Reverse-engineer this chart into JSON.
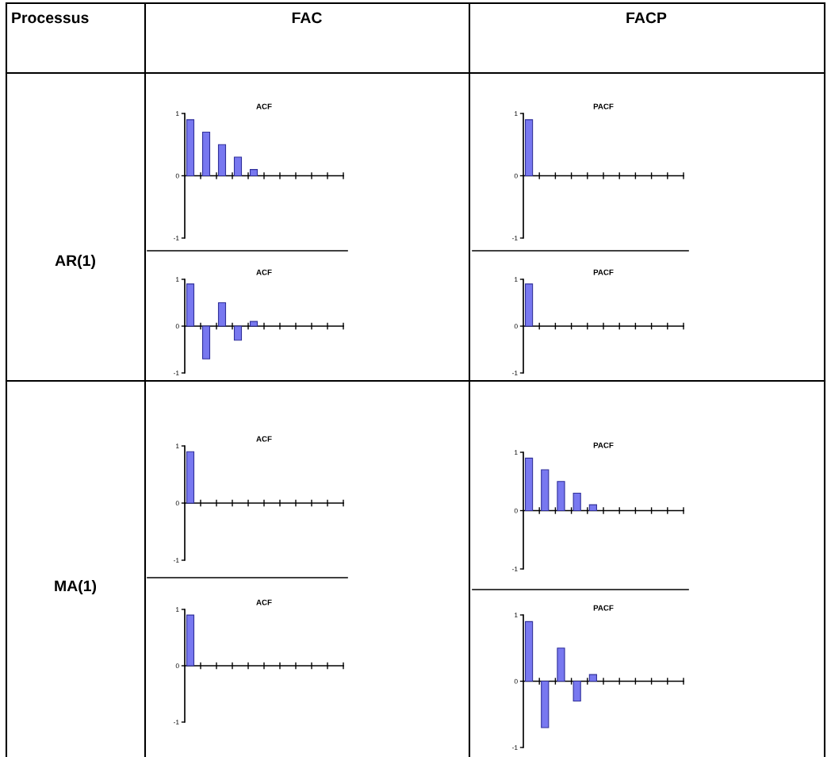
{
  "chart_data": [
    {
      "type": "other",
      "annotations": [
        "Processus",
        "FAC",
        "FACP",
        "AR(1)",
        "MA(1)"
      ]
    },
    {
      "type": "bar",
      "title": "ACF",
      "categories": [
        null,
        null,
        null,
        null,
        null,
        null,
        null,
        null,
        null,
        null
      ],
      "values": [
        0.9,
        0.7,
        0.5,
        0.3,
        0.1,
        null,
        null,
        null,
        null,
        null
      ],
      "color": "#7878f0",
      "ylim": [
        -1,
        1
      ],
      "yticks": [
        {
          "value": 1,
          "label": "1"
        },
        {
          "value": 0,
          "label": "0"
        },
        {
          "value": -1,
          "label": "-1"
        }
      ]
    },
    {
      "type": "bar",
      "title": "PACF",
      "categories": [
        null,
        null,
        null,
        null,
        null,
        null,
        null,
        null,
        null,
        null
      ],
      "values": [
        0.9,
        null,
        null,
        null,
        null,
        null,
        null,
        null,
        null,
        null
      ],
      "color": "#7878f0",
      "ylim": [
        -1,
        1
      ],
      "yticks": [
        {
          "value": 1,
          "label": "1"
        },
        {
          "value": 0,
          "label": "0"
        },
        {
          "value": -1,
          "label": "-1"
        }
      ]
    },
    {
      "type": "bar",
      "title": "ACF",
      "categories": [
        null,
        null,
        null,
        null,
        null,
        null,
        null,
        null,
        null,
        null
      ],
      "values": [
        0.9,
        -0.7,
        0.5,
        -0.3,
        0.1,
        null,
        null,
        null,
        null,
        null
      ],
      "color": "#7878f0",
      "ylim": [
        -1,
        1
      ],
      "yticks": [
        {
          "value": 1,
          "label": "1"
        },
        {
          "value": 0,
          "label": "0"
        },
        {
          "value": -1,
          "label": "-1"
        }
      ]
    },
    {
      "type": "bar",
      "title": "PACF",
      "categories": [
        null,
        null,
        null,
        null,
        null,
        null,
        null,
        null,
        null,
        null
      ],
      "values": [
        0.9,
        null,
        null,
        null,
        null,
        null,
        null,
        null,
        null,
        null
      ],
      "color": "#7878f0",
      "ylim": [
        -1,
        1
      ],
      "yticks": [
        {
          "value": 1,
          "label": "1"
        },
        {
          "value": 0,
          "label": "0"
        },
        {
          "value": -1,
          "label": "-1"
        }
      ]
    },
    {
      "type": "bar",
      "title": "ACF",
      "categories": [
        null,
        null,
        null,
        null,
        null,
        null,
        null,
        null,
        null,
        null
      ],
      "values": [
        0.9,
        null,
        null,
        null,
        null,
        null,
        null,
        null,
        null,
        null
      ],
      "color": "#7878f0",
      "ylim": [
        -1,
        1
      ],
      "yticks": [
        {
          "value": 1,
          "label": "1"
        },
        {
          "value": 0,
          "label": "0"
        },
        {
          "value": -1,
          "label": "-1"
        }
      ]
    },
    {
      "type": "bar",
      "title": "PACF",
      "categories": [
        null,
        null,
        null,
        null,
        null,
        null,
        null,
        null,
        null,
        null
      ],
      "values": [
        0.9,
        0.7,
        0.5,
        0.3,
        0.1,
        null,
        null,
        null,
        null,
        null
      ],
      "color": "#7878f0",
      "ylim": [
        -1,
        1
      ],
      "yticks": [
        {
          "value": 1,
          "label": "1"
        },
        {
          "value": 0,
          "label": "0"
        },
        {
          "value": -1,
          "label": "-1"
        }
      ]
    },
    {
      "type": "bar",
      "title": "ACF",
      "categories": [
        null,
        null,
        null,
        null,
        null,
        null,
        null,
        null,
        null,
        null
      ],
      "values": [
        0.9,
        null,
        null,
        null,
        null,
        null,
        null,
        null,
        null,
        null
      ],
      "color": "#7878f0",
      "ylim": [
        -1,
        1
      ],
      "yticks": [
        {
          "value": 1,
          "label": "1"
        },
        {
          "value": 0,
          "label": "0"
        },
        {
          "value": -1,
          "label": "-1"
        }
      ]
    },
    {
      "type": "bar",
      "title": "PACF",
      "categories": [
        null,
        null,
        null,
        null,
        null,
        null,
        null,
        null,
        null,
        null
      ],
      "values": [
        0.9,
        -0.7,
        0.5,
        -0.3,
        0.1,
        null,
        null,
        null,
        null,
        null
      ],
      "color": "#7878f0",
      "ylim": [
        -1,
        1
      ],
      "yticks": [
        {
          "value": 1,
          "label": "1"
        },
        {
          "value": 0,
          "label": "0"
        },
        {
          "value": -1,
          "label": "-1"
        }
      ]
    }
  ]
}
